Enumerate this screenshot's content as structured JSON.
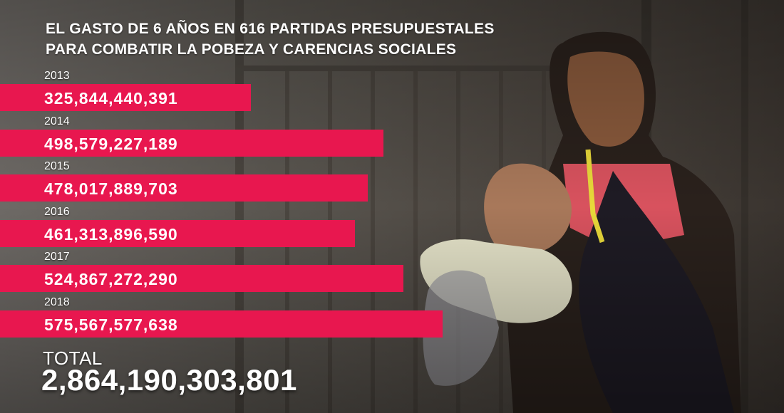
{
  "title_lines": [
    "EL GASTO DE 6 AÑOS EN 616 PARTIDAS PRESUPUESTALES",
    "PARA COMBATIR LA POBEZA Y CARENCIAS SOCIALES"
  ],
  "total": {
    "label": "TOTAL",
    "value": "2,864,190,303,801"
  },
  "colors": {
    "bar": "#e8174f",
    "text": "#ffffff"
  },
  "chart_data": {
    "type": "bar",
    "orientation": "horizontal",
    "categories": [
      "2013",
      "2014",
      "2015",
      "2016",
      "2017",
      "2018"
    ],
    "values": [
      325844440391,
      498579227189,
      478017889703,
      461313896590,
      524867272290,
      575567577638
    ],
    "value_labels": [
      "325,844,440,391",
      "498,579,227,189",
      "478,017,889,703",
      "461,313,896,590",
      "524,867,272,290",
      "575,567,577,638"
    ]
  }
}
